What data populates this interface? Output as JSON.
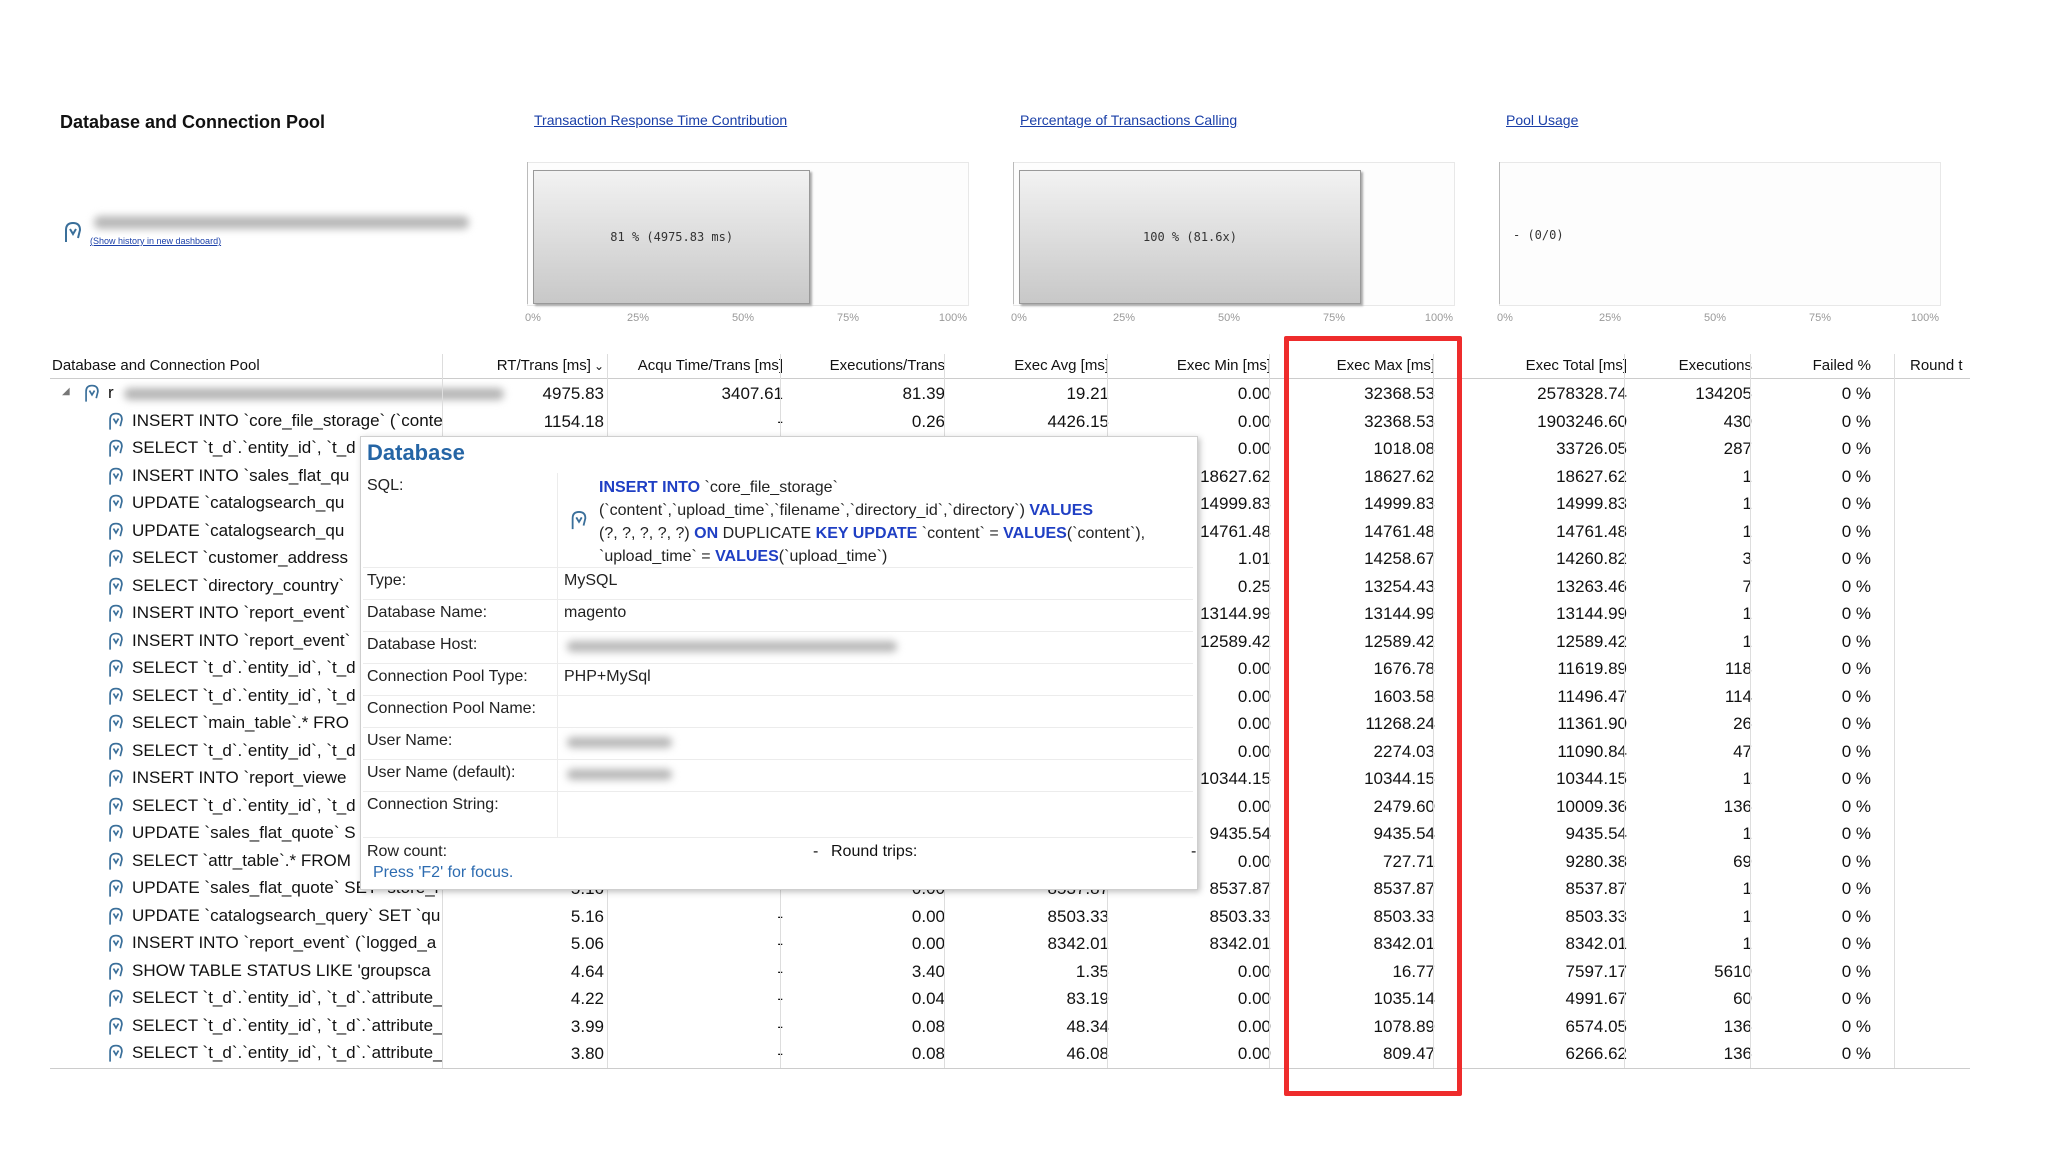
{
  "section_title": "Database and Connection Pool",
  "history_link": "(Show history in new dashboard)",
  "charts": [
    {
      "title": "Transaction Response Time Contribution",
      "bar_label": "81 % (4975.83 ms)",
      "value_pct": 81
    },
    {
      "title": "Percentage of Transactions Calling",
      "bar_label": "100 % (81.6x)",
      "value_pct": 100
    },
    {
      "title": "Pool Usage",
      "bar_label": "- (0/0)",
      "value_pct": 0
    }
  ],
  "axis_ticks": [
    "0%",
    "25%",
    "50%",
    "75%",
    "100%"
  ],
  "table": {
    "columns": [
      "Database and Connection Pool",
      "RT/Trans [ms]",
      "Acqu Time/Trans [ms]",
      "Executions/Trans",
      "Exec Avg [ms]",
      "Exec Min [ms]",
      "Exec Max [ms]",
      "Exec Total [ms]",
      "Executions",
      "Failed %",
      "Round t"
    ],
    "sort_indicator": "⌄",
    "rows": [
      {
        "name": "r",
        "rt": "4975.83",
        "acq": "3407.61",
        "ept": "81.39",
        "avg": "19.21",
        "min": "0.00",
        "max": "32368.53",
        "total": "2578328.74",
        "execs": "134205",
        "failed": "0 %"
      },
      {
        "name": "INSERT INTO `core_file_storage` (`conte",
        "rt": "1154.18",
        "acq": "-",
        "ept": "0.26",
        "avg": "4426.15",
        "min": "0.00",
        "max": "32368.53",
        "total": "1903246.60",
        "execs": "430",
        "failed": "0 %"
      },
      {
        "name": "SELECT `t_d`.`entity_id`, `t_d",
        "rt": "",
        "acq": "",
        "ept": "",
        "avg": "",
        "min": "0.00",
        "max": "1018.08",
        "total": "33726.05",
        "execs": "287",
        "failed": "0 %"
      },
      {
        "name": "INSERT INTO `sales_flat_qu",
        "rt": "",
        "acq": "",
        "ept": "",
        "avg": "",
        "min": "18627.62",
        "max": "18627.62",
        "total": "18627.62",
        "execs": "1",
        "failed": "0 %"
      },
      {
        "name": "UPDATE `catalogsearch_qu",
        "rt": "",
        "acq": "",
        "ept": "",
        "avg": "",
        "min": "14999.83",
        "max": "14999.83",
        "total": "14999.83",
        "execs": "1",
        "failed": "0 %"
      },
      {
        "name": "UPDATE `catalogsearch_qu",
        "rt": "",
        "acq": "",
        "ept": "",
        "avg": "",
        "min": "14761.48",
        "max": "14761.48",
        "total": "14761.48",
        "execs": "1",
        "failed": "0 %"
      },
      {
        "name": "SELECT `customer_address",
        "rt": "",
        "acq": "",
        "ept": "",
        "avg": "",
        "min": "1.01",
        "max": "14258.67",
        "total": "14260.82",
        "execs": "3",
        "failed": "0 %"
      },
      {
        "name": "SELECT `directory_country`",
        "rt": "",
        "acq": "",
        "ept": "",
        "avg": "",
        "min": "0.25",
        "max": "13254.43",
        "total": "13263.46",
        "execs": "7",
        "failed": "0 %"
      },
      {
        "name": "INSERT INTO `report_event`",
        "rt": "",
        "acq": "",
        "ept": "",
        "avg": "",
        "min": "13144.99",
        "max": "13144.99",
        "total": "13144.99",
        "execs": "1",
        "failed": "0 %"
      },
      {
        "name": "INSERT INTO `report_event`",
        "rt": "",
        "acq": "",
        "ept": "",
        "avg": "",
        "min": "12589.42",
        "max": "12589.42",
        "total": "12589.42",
        "execs": "1",
        "failed": "0 %"
      },
      {
        "name": "SELECT `t_d`.`entity_id`, `t_d",
        "rt": "",
        "acq": "",
        "ept": "",
        "avg": "",
        "min": "0.00",
        "max": "1676.78",
        "total": "11619.89",
        "execs": "118",
        "failed": "0 %"
      },
      {
        "name": "SELECT `t_d`.`entity_id`, `t_d",
        "rt": "",
        "acq": "",
        "ept": "",
        "avg": "",
        "min": "0.00",
        "max": "1603.58",
        "total": "11496.47",
        "execs": "114",
        "failed": "0 %"
      },
      {
        "name": "SELECT `main_table`.* FRO",
        "rt": "",
        "acq": "",
        "ept": "",
        "avg": "",
        "min": "0.00",
        "max": "11268.24",
        "total": "11361.90",
        "execs": "26",
        "failed": "0 %"
      },
      {
        "name": "SELECT `t_d`.`entity_id`, `t_d",
        "rt": "",
        "acq": "",
        "ept": "",
        "avg": "",
        "min": "0.00",
        "max": "2274.03",
        "total": "11090.84",
        "execs": "47",
        "failed": "0 %"
      },
      {
        "name": "INSERT INTO `report_viewe",
        "rt": "",
        "acq": "",
        "ept": "",
        "avg": "",
        "min": "10344.15",
        "max": "10344.15",
        "total": "10344.15",
        "execs": "1",
        "failed": "0 %"
      },
      {
        "name": "SELECT `t_d`.`entity_id`, `t_d",
        "rt": "",
        "acq": "",
        "ept": "",
        "avg": "",
        "min": "0.00",
        "max": "2479.60",
        "total": "10009.36",
        "execs": "136",
        "failed": "0 %"
      },
      {
        "name": "UPDATE `sales_flat_quote` S",
        "rt": "",
        "acq": "",
        "ept": "",
        "avg": "",
        "min": "9435.54",
        "max": "9435.54",
        "total": "9435.54",
        "execs": "1",
        "failed": "0 %"
      },
      {
        "name": "SELECT `attr_table`.* FROM",
        "rt": "",
        "acq": "",
        "ept": "",
        "avg": "",
        "min": "0.00",
        "max": "727.71",
        "total": "9280.38",
        "execs": "69",
        "failed": "0 %"
      },
      {
        "name": "UPDATE `sales_flat_quote` SET `store_i",
        "rt": "5.16",
        "acq": "-",
        "ept": "0.00",
        "avg": "8537.87",
        "min": "8537.87",
        "max": "8537.87",
        "total": "8537.87",
        "execs": "1",
        "failed": "0 %"
      },
      {
        "name": "UPDATE `catalogsearch_query` SET `qu",
        "rt": "5.16",
        "acq": "-",
        "ept": "0.00",
        "avg": "8503.33",
        "min": "8503.33",
        "max": "8503.33",
        "total": "8503.33",
        "execs": "1",
        "failed": "0 %"
      },
      {
        "name": "INSERT INTO `report_event` (`logged_a",
        "rt": "5.06",
        "acq": "-",
        "ept": "0.00",
        "avg": "8342.01",
        "min": "8342.01",
        "max": "8342.01",
        "total": "8342.01",
        "execs": "1",
        "failed": "0 %"
      },
      {
        "name": "SHOW TABLE STATUS LIKE 'groupsca",
        "rt": "4.64",
        "acq": "-",
        "ept": "3.40",
        "avg": "1.35",
        "min": "0.00",
        "max": "16.77",
        "total": "7597.17",
        "execs": "5610",
        "failed": "0 %"
      },
      {
        "name": "SELECT `t_d`.`entity_id`, `t_d`.`attribute_",
        "rt": "4.22",
        "acq": "-",
        "ept": "0.04",
        "avg": "83.19",
        "min": "0.00",
        "max": "1035.14",
        "total": "4991.67",
        "execs": "60",
        "failed": "0 %"
      },
      {
        "name": "SELECT `t_d`.`entity_id`, `t_d`.`attribute_",
        "rt": "3.99",
        "acq": "-",
        "ept": "0.08",
        "avg": "48.34",
        "min": "0.00",
        "max": "1078.89",
        "total": "6574.05",
        "execs": "136",
        "failed": "0 %"
      },
      {
        "name": "SELECT `t_d`.`entity_id`, `t_d`.`attribute_",
        "rt": "3.80",
        "acq": "-",
        "ept": "0.08",
        "avg": "46.08",
        "min": "0.00",
        "max": "809.47",
        "total": "6266.62",
        "execs": "136",
        "failed": "0 %"
      }
    ]
  },
  "popup": {
    "title": "Database",
    "sql_label": "SQL:",
    "sql_parts": [
      [
        "kw",
        "INSERT INTO"
      ],
      [
        "t",
        " `core_file_storage`"
      ],
      [
        "br",
        ""
      ],
      [
        "t",
        "(`content`,`upload_time`,`filename`,`directory_id`,`directory`) "
      ],
      [
        "kw",
        "VALUES"
      ],
      [
        "br",
        ""
      ],
      [
        "t",
        "(?, ?, ?, ?, ?) "
      ],
      [
        "kw",
        "ON"
      ],
      [
        "t",
        " DUPLICATE "
      ],
      [
        "kw",
        "KEY UPDATE"
      ],
      [
        "t",
        " `content` = "
      ],
      [
        "kw",
        "VALUES"
      ],
      [
        "t",
        "(`content`),"
      ],
      [
        "br",
        ""
      ],
      [
        "t",
        "`upload_time` = "
      ],
      [
        "kw",
        "VALUES"
      ],
      [
        "t",
        "(`upload_time`)"
      ]
    ],
    "fields": [
      {
        "label": "Type:",
        "value": "MySQL"
      },
      {
        "label": "Database Name:",
        "value": "magento"
      },
      {
        "label": "Database Host:",
        "value": ""
      },
      {
        "label": "Connection Pool Type:",
        "value": "PHP+MySql"
      },
      {
        "label": "Connection Pool Name:",
        "value": ""
      },
      {
        "label": "User Name:",
        "value": ""
      },
      {
        "label": "User Name (default):",
        "value": ""
      },
      {
        "label": "Connection String:",
        "value": ""
      }
    ],
    "row_count_label": "Row count:",
    "row_count_value": "-",
    "round_trips_label": "Round trips:",
    "round_trips_value": "-",
    "hint": "Press 'F2' for focus."
  },
  "colors": {
    "link": "#1a3fa8",
    "popup_title": "#2565a5",
    "highlight": "#ee2c2c",
    "sql_keyword": "#1f3fc4"
  }
}
